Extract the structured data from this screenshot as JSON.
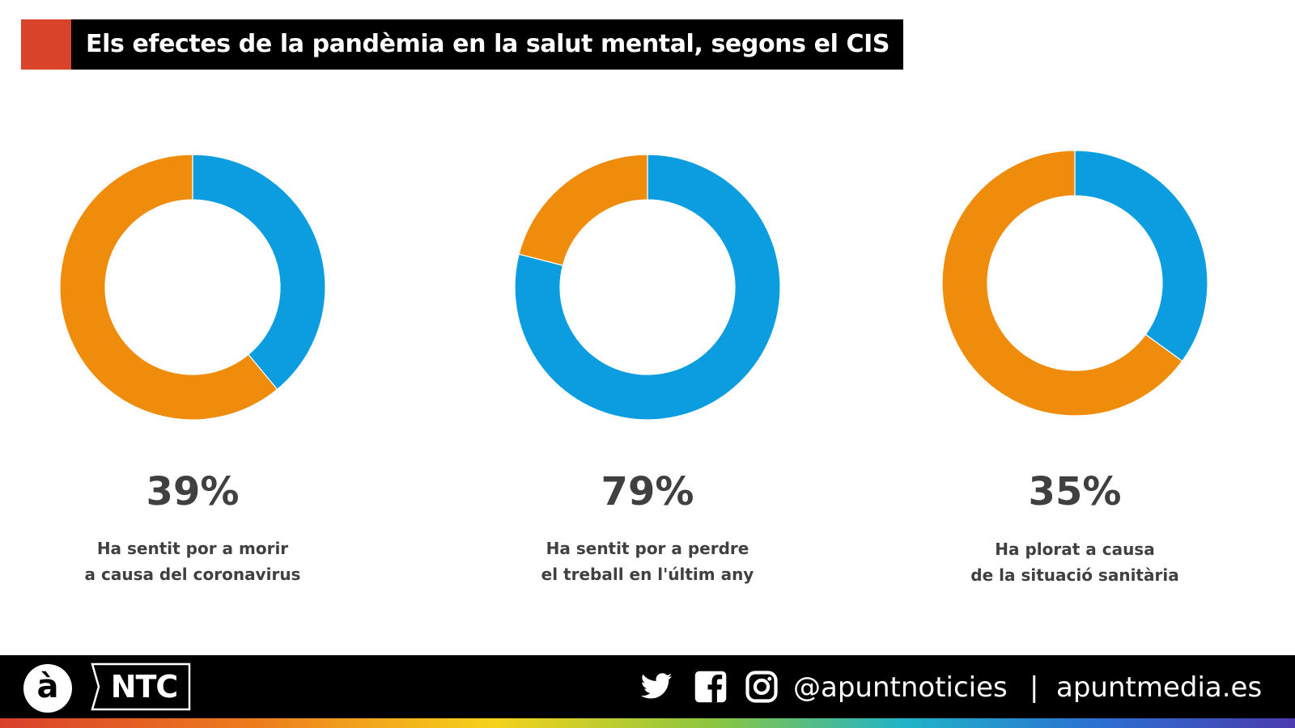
{
  "header": {
    "title": "Els efectes de la pandèmia en la salut mental, segons el CIS",
    "accent_color": "#d8432a"
  },
  "chart_data": [
    {
      "type": "pie",
      "values": [
        39,
        61
      ],
      "colors": [
        "#0b9ddf",
        "#f08c0c"
      ],
      "value_label": "39%",
      "caption_line1": "Ha sentit por a morir",
      "caption_line2": "a causa del coronavirus"
    },
    {
      "type": "pie",
      "values": [
        79,
        21
      ],
      "colors": [
        "#0b9ddf",
        "#f08c0c"
      ],
      "value_label": "79%",
      "caption_line1": "Ha sentit por a perdre",
      "caption_line2": "el treball en l'últim any"
    },
    {
      "type": "pie",
      "values": [
        35,
        65
      ],
      "colors": [
        "#0b9ddf",
        "#f08c0c"
      ],
      "value_label": "35%",
      "caption_line1": "Ha plorat a causa",
      "caption_line2": "de la situació sanitària"
    }
  ],
  "footer": {
    "logo_letter": "à",
    "brand": "NTC",
    "icons": [
      "twitter-icon",
      "facebook-icon",
      "instagram-icon"
    ],
    "handle": "@apuntnoticies",
    "separator": "|",
    "website": "apuntmedia.es"
  }
}
